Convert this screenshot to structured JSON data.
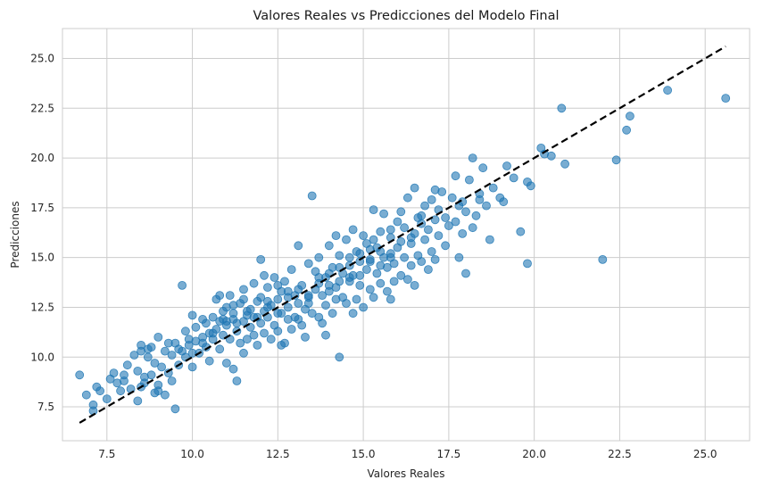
{
  "chart_data": {
    "type": "scatter",
    "title": "Valores Reales vs Predicciones del Modelo Final",
    "xlabel": "Valores Reales",
    "ylabel": "Predicciones",
    "xlim": [
      6.2,
      26.3
    ],
    "ylim": [
      5.8,
      26.5
    ],
    "xticks": [
      7.5,
      10.0,
      12.5,
      15.0,
      17.5,
      20.0,
      22.5,
      25.0
    ],
    "yticks": [
      7.5,
      10.0,
      12.5,
      15.0,
      17.5,
      20.0,
      22.5,
      25.0
    ],
    "tick_labels": {
      "x": [
        "7.5",
        "10.0",
        "12.5",
        "15.0",
        "17.5",
        "20.0",
        "22.5",
        "25.0"
      ],
      "y": [
        "7.5",
        "10.0",
        "12.5",
        "15.0",
        "17.5",
        "20.0",
        "22.5",
        "25.0"
      ]
    },
    "grid": true,
    "point_color": "#1f77b4",
    "point_alpha": 0.6,
    "reference_line": {
      "x": [
        6.7,
        25.6
      ],
      "y": [
        6.7,
        25.6
      ],
      "style": "dashed",
      "color": "#000000"
    },
    "series": [
      {
        "points": [
          [
            6.7,
            9.1
          ],
          [
            6.9,
            8.1
          ],
          [
            7.1,
            7.3
          ],
          [
            7.1,
            7.6
          ],
          [
            7.2,
            8.5
          ],
          [
            7.3,
            8.3
          ],
          [
            7.5,
            7.9
          ],
          [
            7.7,
            9.2
          ],
          [
            7.8,
            8.7
          ],
          [
            7.9,
            8.3
          ],
          [
            8.0,
            9.1
          ],
          [
            8.0,
            8.8
          ],
          [
            8.2,
            8.4
          ],
          [
            8.3,
            10.1
          ],
          [
            8.4,
            7.8
          ],
          [
            8.4,
            9.3
          ],
          [
            8.5,
            8.5
          ],
          [
            8.5,
            10.6
          ],
          [
            8.5,
            10.3
          ],
          [
            8.6,
            9.0
          ],
          [
            8.6,
            8.7
          ],
          [
            8.7,
            10.4
          ],
          [
            8.7,
            10.0
          ],
          [
            8.8,
            10.5
          ],
          [
            8.8,
            9.1
          ],
          [
            8.9,
            8.2
          ],
          [
            8.9,
            9.7
          ],
          [
            9.0,
            8.6
          ],
          [
            9.0,
            11.0
          ],
          [
            9.0,
            8.3
          ],
          [
            9.1,
            9.5
          ],
          [
            9.2,
            10.3
          ],
          [
            9.2,
            8.1
          ],
          [
            9.3,
            10.7
          ],
          [
            9.3,
            9.2
          ],
          [
            9.4,
            8.8
          ],
          [
            9.4,
            10.1
          ],
          [
            9.5,
            10.7
          ],
          [
            9.5,
            7.4
          ],
          [
            9.6,
            10.4
          ],
          [
            9.6,
            9.6
          ],
          [
            9.7,
            13.6
          ],
          [
            9.8,
            10.0
          ],
          [
            9.8,
            11.3
          ],
          [
            9.9,
            10.9
          ],
          [
            9.9,
            10.6
          ],
          [
            10.0,
            9.5
          ],
          [
            10.0,
            12.1
          ],
          [
            10.1,
            10.8
          ],
          [
            10.1,
            11.5
          ],
          [
            10.2,
            10.2
          ],
          [
            10.3,
            11.0
          ],
          [
            10.4,
            10.5
          ],
          [
            10.4,
            11.7
          ],
          [
            10.5,
            9.8
          ],
          [
            10.5,
            11.2
          ],
          [
            10.6,
            12.0
          ],
          [
            10.6,
            10.9
          ],
          [
            10.7,
            11.4
          ],
          [
            10.7,
            12.9
          ],
          [
            10.8,
            11.8
          ],
          [
            10.8,
            10.4
          ],
          [
            10.9,
            11.1
          ],
          [
            10.9,
            12.3
          ],
          [
            11.0,
            9.7
          ],
          [
            11.0,
            11.6
          ],
          [
            11.0,
            12.5
          ],
          [
            11.1,
            10.9
          ],
          [
            11.1,
            13.1
          ],
          [
            11.2,
            11.9
          ],
          [
            11.2,
            9.4
          ],
          [
            11.2,
            12.2
          ],
          [
            11.3,
            8.8
          ],
          [
            11.3,
            11.3
          ],
          [
            11.4,
            12.7
          ],
          [
            11.4,
            10.7
          ],
          [
            11.5,
            11.8
          ],
          [
            11.5,
            13.4
          ],
          [
            11.6,
            12.1
          ],
          [
            11.6,
            10.9
          ],
          [
            11.7,
            12.4
          ],
          [
            11.7,
            11.5
          ],
          [
            11.8,
            13.7
          ],
          [
            11.8,
            12.0
          ],
          [
            11.9,
            10.6
          ],
          [
            11.9,
            12.8
          ],
          [
            12.0,
            11.7
          ],
          [
            12.0,
            13.0
          ],
          [
            12.0,
            14.9
          ],
          [
            12.1,
            12.3
          ],
          [
            12.1,
            11.2
          ],
          [
            12.2,
            13.5
          ],
          [
            12.2,
            12.0
          ],
          [
            12.3,
            10.9
          ],
          [
            12.3,
            12.6
          ],
          [
            12.4,
            11.6
          ],
          [
            12.4,
            14.0
          ],
          [
            12.5,
            12.9
          ],
          [
            12.5,
            11.3
          ],
          [
            12.6,
            13.3
          ],
          [
            12.6,
            12.2
          ],
          [
            12.7,
            10.7
          ],
          [
            12.7,
            13.8
          ],
          [
            12.8,
            11.9
          ],
          [
            12.8,
            12.5
          ],
          [
            12.9,
            14.4
          ],
          [
            12.9,
            11.4
          ],
          [
            13.0,
            13.1
          ],
          [
            13.0,
            12.0
          ],
          [
            13.1,
            15.6
          ],
          [
            13.1,
            12.7
          ],
          [
            13.2,
            11.6
          ],
          [
            13.2,
            13.6
          ],
          [
            13.3,
            12.4
          ],
          [
            13.3,
            11.0
          ],
          [
            13.4,
            13.0
          ],
          [
            13.5,
            18.1
          ],
          [
            13.5,
            12.2
          ],
          [
            13.6,
            14.3
          ],
          [
            13.6,
            13.4
          ],
          [
            13.7,
            12.0
          ],
          [
            13.7,
            15.0
          ],
          [
            13.8,
            13.1
          ],
          [
            13.8,
            11.7
          ],
          [
            13.9,
            14.0
          ],
          [
            13.9,
            12.6
          ],
          [
            14.0,
            15.6
          ],
          [
            14.0,
            13.3
          ],
          [
            14.1,
            12.2
          ],
          [
            14.1,
            14.5
          ],
          [
            14.2,
            13.5
          ],
          [
            14.2,
            12.9
          ],
          [
            14.3,
            15.1
          ],
          [
            14.3,
            10.0
          ],
          [
            14.4,
            14.2
          ],
          [
            14.4,
            13.0
          ],
          [
            14.5,
            15.9
          ],
          [
            14.5,
            12.7
          ],
          [
            14.6,
            14.6
          ],
          [
            14.6,
            13.8
          ],
          [
            14.7,
            16.4
          ],
          [
            14.7,
            14.1
          ],
          [
            14.8,
            12.9
          ],
          [
            14.8,
            15.3
          ],
          [
            14.9,
            13.6
          ],
          [
            14.9,
            14.8
          ],
          [
            15.0,
            16.1
          ],
          [
            15.0,
            12.5
          ],
          [
            15.1,
            14.4
          ],
          [
            15.1,
            15.7
          ],
          [
            15.2,
            13.4
          ],
          [
            15.2,
            14.9
          ],
          [
            15.3,
            17.4
          ],
          [
            15.3,
            13.0
          ],
          [
            15.4,
            15.5
          ],
          [
            15.4,
            14.2
          ],
          [
            15.5,
            16.3
          ],
          [
            15.5,
            13.7
          ],
          [
            15.6,
            15.0
          ],
          [
            15.6,
            17.2
          ],
          [
            15.7,
            14.5
          ],
          [
            15.7,
            13.3
          ],
          [
            15.8,
            16.0
          ],
          [
            15.8,
            15.2
          ],
          [
            15.9,
            13.8
          ],
          [
            15.9,
            14.7
          ],
          [
            16.0,
            16.8
          ],
          [
            16.0,
            15.5
          ],
          [
            16.1,
            14.1
          ],
          [
            16.1,
            17.3
          ],
          [
            16.2,
            15.0
          ],
          [
            16.2,
            16.5
          ],
          [
            16.3,
            13.9
          ],
          [
            16.3,
            18.0
          ],
          [
            16.4,
            15.7
          ],
          [
            16.4,
            14.6
          ],
          [
            16.5,
            18.5
          ],
          [
            16.5,
            16.2
          ],
          [
            16.6,
            15.1
          ],
          [
            16.6,
            17.0
          ],
          [
            16.7,
            14.8
          ],
          [
            16.7,
            16.7
          ],
          [
            16.8,
            15.9
          ],
          [
            16.8,
            17.6
          ],
          [
            16.9,
            14.4
          ],
          [
            16.9,
            16.4
          ],
          [
            17.0,
            15.3
          ],
          [
            17.0,
            17.9
          ],
          [
            17.1,
            16.9
          ],
          [
            17.1,
            14.9
          ],
          [
            17.2,
            17.4
          ],
          [
            17.2,
            16.1
          ],
          [
            17.3,
            18.3
          ],
          [
            17.4,
            15.6
          ],
          [
            17.4,
            17.0
          ],
          [
            17.5,
            16.6
          ],
          [
            17.6,
            18.0
          ],
          [
            17.7,
            16.8
          ],
          [
            17.8,
            15.0
          ],
          [
            17.8,
            17.6
          ],
          [
            17.9,
            16.2
          ],
          [
            17.9,
            17.8
          ],
          [
            18.0,
            14.2
          ],
          [
            18.0,
            17.3
          ],
          [
            18.1,
            18.9
          ],
          [
            18.2,
            20.0
          ],
          [
            18.2,
            16.5
          ],
          [
            18.3,
            17.1
          ],
          [
            18.4,
            18.2
          ],
          [
            18.5,
            19.5
          ],
          [
            18.6,
            17.6
          ],
          [
            18.7,
            15.9
          ],
          [
            18.8,
            18.5
          ],
          [
            19.0,
            18.0
          ],
          [
            19.1,
            17.8
          ],
          [
            19.2,
            19.6
          ],
          [
            19.6,
            16.3
          ],
          [
            19.8,
            14.7
          ],
          [
            19.8,
            18.8
          ],
          [
            19.9,
            18.6
          ],
          [
            20.2,
            20.5
          ],
          [
            20.3,
            20.2
          ],
          [
            20.5,
            20.1
          ],
          [
            20.8,
            22.5
          ],
          [
            20.9,
            19.7
          ],
          [
            22.0,
            14.9
          ],
          [
            22.4,
            19.9
          ],
          [
            22.7,
            21.4
          ],
          [
            22.8,
            22.1
          ],
          [
            23.9,
            23.4
          ],
          [
            25.6,
            23.0
          ],
          [
            7.6,
            8.9
          ],
          [
            8.1,
            9.6
          ],
          [
            9.7,
            10.3
          ],
          [
            10.3,
            11.9
          ],
          [
            10.8,
            13.1
          ],
          [
            11.5,
            10.2
          ],
          [
            12.1,
            14.1
          ],
          [
            12.6,
            10.6
          ],
          [
            13.4,
            14.7
          ],
          [
            13.9,
            11.1
          ],
          [
            14.2,
            16.1
          ],
          [
            14.7,
            12.2
          ],
          [
            15.3,
            15.9
          ],
          [
            15.8,
            12.9
          ],
          [
            16.5,
            13.6
          ],
          [
            17.1,
            18.4
          ],
          [
            17.7,
            19.1
          ],
          [
            18.4,
            17.9
          ],
          [
            19.4,
            19.0
          ],
          [
            11.0,
            11.8
          ],
          [
            11.2,
            12.6
          ],
          [
            11.5,
            12.9
          ],
          [
            11.8,
            11.1
          ],
          [
            12.2,
            12.8
          ],
          [
            12.5,
            13.6
          ],
          [
            12.8,
            13.3
          ],
          [
            13.1,
            11.9
          ],
          [
            13.4,
            12.7
          ],
          [
            13.7,
            13.7
          ],
          [
            14.0,
            14.2
          ],
          [
            14.3,
            13.8
          ],
          [
            14.6,
            15.0
          ],
          [
            14.9,
            14.1
          ],
          [
            15.2,
            15.4
          ],
          [
            15.5,
            14.6
          ],
          [
            15.8,
            16.4
          ],
          [
            16.1,
            15.8
          ],
          [
            16.4,
            16.0
          ],
          [
            16.7,
            17.1
          ],
          [
            10.0,
            10.2
          ],
          [
            10.3,
            10.7
          ],
          [
            10.6,
            11.2
          ],
          [
            10.9,
            11.9
          ],
          [
            11.3,
            11.7
          ],
          [
            11.6,
            12.3
          ],
          [
            11.9,
            12.0
          ],
          [
            12.2,
            12.5
          ],
          [
            12.5,
            12.2
          ],
          [
            12.8,
            13.0
          ],
          [
            13.1,
            13.4
          ],
          [
            13.4,
            13.1
          ],
          [
            13.7,
            14.0
          ],
          [
            14.0,
            13.6
          ],
          [
            14.3,
            14.5
          ],
          [
            14.6,
            14.0
          ],
          [
            14.9,
            15.2
          ],
          [
            15.2,
            14.8
          ],
          [
            15.5,
            15.3
          ],
          [
            15.8,
            15.0
          ]
        ]
      }
    ]
  }
}
